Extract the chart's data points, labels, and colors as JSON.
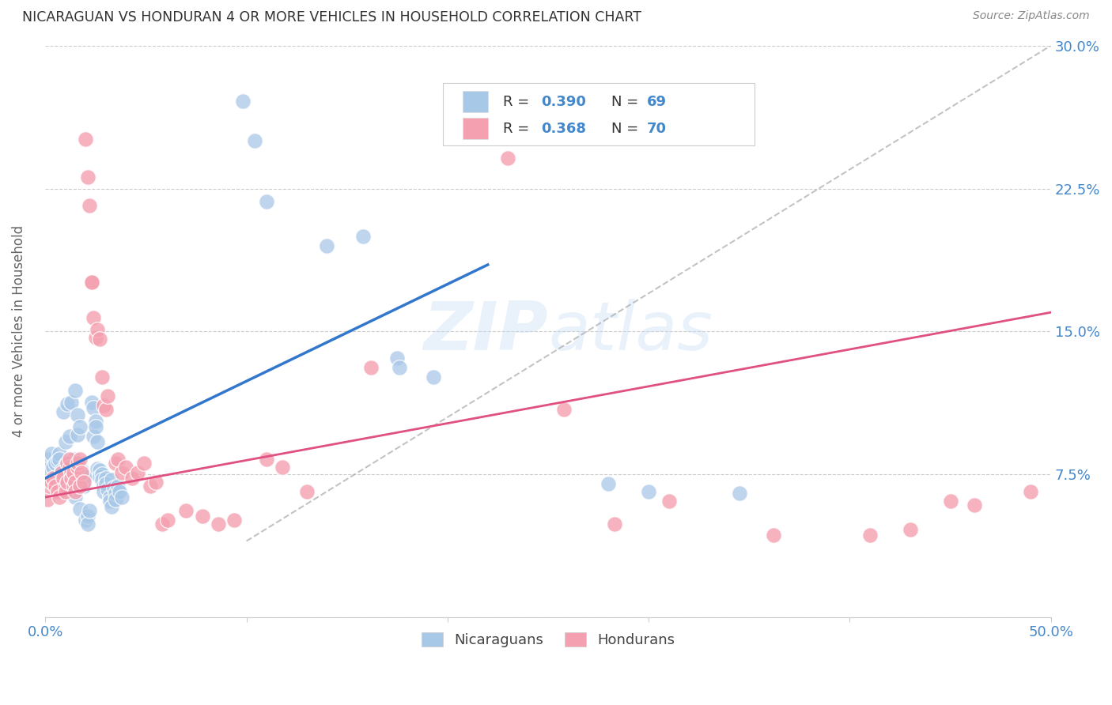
{
  "title": "NICARAGUAN VS HONDURAN 4 OR MORE VEHICLES IN HOUSEHOLD CORRELATION CHART",
  "source": "Source: ZipAtlas.com",
  "ylabel": "4 or more Vehicles in Household",
  "xlim": [
    0.0,
    0.5
  ],
  "ylim": [
    0.0,
    0.3
  ],
  "xticks": [
    0.0,
    0.1,
    0.2,
    0.3,
    0.4,
    0.5
  ],
  "yticks": [
    0.0,
    0.075,
    0.15,
    0.225,
    0.3
  ],
  "xtick_labels": [
    "0.0%",
    "",
    "",
    "",
    "",
    "50.0%"
  ],
  "ytick_labels_right": [
    "",
    "7.5%",
    "15.0%",
    "22.5%",
    "30.0%"
  ],
  "legend_label1": "Nicaraguans",
  "legend_label2": "Hondurans",
  "blue_color": "#a8c8e8",
  "pink_color": "#f4a0b0",
  "blue_line_color": "#3377cc",
  "pink_line_color": "#e05080",
  "watermark": "ZIPatlas",
  "background_color": "#ffffff",
  "scatter_blue": [
    [
      0.001,
      0.083
    ],
    [
      0.002,
      0.078
    ],
    [
      0.003,
      0.086
    ],
    [
      0.004,
      0.079
    ],
    [
      0.005,
      0.081
    ],
    [
      0.006,
      0.082
    ],
    [
      0.007,
      0.086
    ],
    [
      0.007,
      0.083
    ],
    [
      0.008,
      0.077
    ],
    [
      0.009,
      0.072
    ],
    [
      0.009,
      0.108
    ],
    [
      0.01,
      0.092
    ],
    [
      0.01,
      0.08
    ],
    [
      0.011,
      0.112
    ],
    [
      0.012,
      0.095
    ],
    [
      0.013,
      0.113
    ],
    [
      0.013,
      0.082
    ],
    [
      0.014,
      0.076
    ],
    [
      0.014,
      0.083
    ],
    [
      0.015,
      0.119
    ],
    [
      0.015,
      0.063
    ],
    [
      0.016,
      0.106
    ],
    [
      0.016,
      0.096
    ],
    [
      0.017,
      0.057
    ],
    [
      0.017,
      0.1
    ],
    [
      0.018,
      0.076
    ],
    [
      0.018,
      0.077
    ],
    [
      0.019,
      0.073
    ],
    [
      0.019,
      0.069
    ],
    [
      0.02,
      0.074
    ],
    [
      0.02,
      0.051
    ],
    [
      0.021,
      0.053
    ],
    [
      0.021,
      0.049
    ],
    [
      0.022,
      0.056
    ],
    [
      0.023,
      0.113
    ],
    [
      0.024,
      0.11
    ],
    [
      0.024,
      0.095
    ],
    [
      0.025,
      0.103
    ],
    [
      0.025,
      0.1
    ],
    [
      0.026,
      0.092
    ],
    [
      0.026,
      0.078
    ],
    [
      0.027,
      0.077
    ],
    [
      0.027,
      0.074
    ],
    [
      0.028,
      0.075
    ],
    [
      0.028,
      0.072
    ],
    [
      0.029,
      0.069
    ],
    [
      0.029,
      0.066
    ],
    [
      0.03,
      0.073
    ],
    [
      0.03,
      0.07
    ],
    [
      0.031,
      0.067
    ],
    [
      0.032,
      0.063
    ],
    [
      0.032,
      0.061
    ],
    [
      0.033,
      0.058
    ],
    [
      0.033,
      0.072
    ],
    [
      0.034,
      0.068
    ],
    [
      0.035,
      0.065
    ],
    [
      0.035,
      0.062
    ],
    [
      0.036,
      0.069
    ],
    [
      0.037,
      0.066
    ],
    [
      0.038,
      0.063
    ],
    [
      0.098,
      0.271
    ],
    [
      0.104,
      0.25
    ],
    [
      0.11,
      0.218
    ],
    [
      0.14,
      0.195
    ],
    [
      0.158,
      0.2
    ],
    [
      0.175,
      0.136
    ],
    [
      0.176,
      0.131
    ],
    [
      0.193,
      0.126
    ],
    [
      0.28,
      0.07
    ],
    [
      0.3,
      0.066
    ],
    [
      0.345,
      0.065
    ]
  ],
  "scatter_pink": [
    [
      0.001,
      0.062
    ],
    [
      0.002,
      0.069
    ],
    [
      0.003,
      0.071
    ],
    [
      0.004,
      0.073
    ],
    [
      0.005,
      0.069
    ],
    [
      0.006,
      0.066
    ],
    [
      0.007,
      0.063
    ],
    [
      0.008,
      0.076
    ],
    [
      0.009,
      0.073
    ],
    [
      0.01,
      0.069
    ],
    [
      0.01,
      0.066
    ],
    [
      0.011,
      0.071
    ],
    [
      0.011,
      0.081
    ],
    [
      0.012,
      0.079
    ],
    [
      0.012,
      0.083
    ],
    [
      0.013,
      0.076
    ],
    [
      0.013,
      0.073
    ],
    [
      0.014,
      0.069
    ],
    [
      0.014,
      0.076
    ],
    [
      0.015,
      0.071
    ],
    [
      0.015,
      0.066
    ],
    [
      0.016,
      0.079
    ],
    [
      0.016,
      0.081
    ],
    [
      0.017,
      0.083
    ],
    [
      0.017,
      0.069
    ],
    [
      0.018,
      0.076
    ],
    [
      0.019,
      0.071
    ],
    [
      0.02,
      0.251
    ],
    [
      0.021,
      0.231
    ],
    [
      0.022,
      0.216
    ],
    [
      0.023,
      0.176
    ],
    [
      0.023,
      0.176
    ],
    [
      0.024,
      0.157
    ],
    [
      0.025,
      0.147
    ],
    [
      0.026,
      0.151
    ],
    [
      0.027,
      0.146
    ],
    [
      0.028,
      0.126
    ],
    [
      0.029,
      0.111
    ],
    [
      0.03,
      0.109
    ],
    [
      0.031,
      0.116
    ],
    [
      0.035,
      0.081
    ],
    [
      0.036,
      0.083
    ],
    [
      0.038,
      0.076
    ],
    [
      0.04,
      0.079
    ],
    [
      0.043,
      0.073
    ],
    [
      0.046,
      0.076
    ],
    [
      0.049,
      0.081
    ],
    [
      0.052,
      0.069
    ],
    [
      0.055,
      0.071
    ],
    [
      0.058,
      0.049
    ],
    [
      0.061,
      0.051
    ],
    [
      0.07,
      0.056
    ],
    [
      0.078,
      0.053
    ],
    [
      0.086,
      0.049
    ],
    [
      0.094,
      0.051
    ],
    [
      0.11,
      0.083
    ],
    [
      0.118,
      0.079
    ],
    [
      0.13,
      0.066
    ],
    [
      0.162,
      0.131
    ],
    [
      0.23,
      0.241
    ],
    [
      0.258,
      0.109
    ],
    [
      0.283,
      0.049
    ],
    [
      0.31,
      0.061
    ],
    [
      0.362,
      0.043
    ],
    [
      0.41,
      0.043
    ],
    [
      0.43,
      0.046
    ],
    [
      0.45,
      0.061
    ],
    [
      0.462,
      0.059
    ],
    [
      0.49,
      0.066
    ]
  ],
  "blue_regline": [
    [
      0.0,
      0.073
    ],
    [
      0.22,
      0.185
    ]
  ],
  "pink_regline": [
    [
      0.0,
      0.063
    ],
    [
      0.5,
      0.16
    ]
  ],
  "dashed_line": [
    [
      0.1,
      0.04
    ],
    [
      0.5,
      0.3
    ]
  ]
}
